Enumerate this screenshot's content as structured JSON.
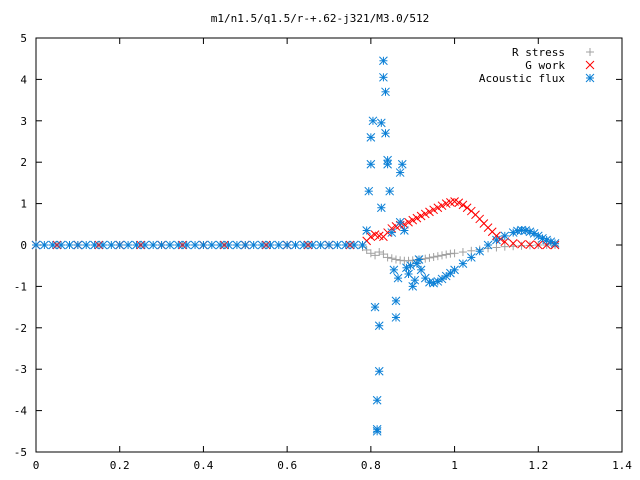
{
  "chart_data": {
    "type": "scatter",
    "title": "m1/n1.5/q1.5/r-+.62-j321/M3.0/512",
    "xlabel": "",
    "ylabel": "",
    "xlim": [
      0,
      1.4
    ],
    "ylim": [
      -5,
      5
    ],
    "x_ticks": [
      "0",
      "0.2",
      "0.4",
      "0.6",
      "0.8",
      "1",
      "1.2",
      "1.4"
    ],
    "y_ticks": [
      "5",
      "4",
      "3",
      "2",
      "1",
      "0",
      "-1",
      "-2",
      "-3",
      "-4",
      "-5"
    ],
    "grid": false,
    "legend_position": "top-right",
    "series": [
      {
        "name": "R stress",
        "marker": "+",
        "color": "#a0a0a0",
        "points": [
          [
            0.0,
            0
          ],
          [
            0.05,
            0
          ],
          [
            0.1,
            0
          ],
          [
            0.15,
            0
          ],
          [
            0.2,
            0
          ],
          [
            0.25,
            0
          ],
          [
            0.3,
            0
          ],
          [
            0.35,
            0
          ],
          [
            0.4,
            0
          ],
          [
            0.45,
            0
          ],
          [
            0.5,
            0
          ],
          [
            0.55,
            0
          ],
          [
            0.6,
            0
          ],
          [
            0.65,
            0
          ],
          [
            0.7,
            0
          ],
          [
            0.75,
            0
          ],
          [
            0.78,
            -0.05
          ],
          [
            0.79,
            -0.12
          ],
          [
            0.8,
            -0.2
          ],
          [
            0.81,
            -0.25
          ],
          [
            0.82,
            -0.17
          ],
          [
            0.83,
            -0.22
          ],
          [
            0.84,
            -0.3
          ],
          [
            0.85,
            -0.32
          ],
          [
            0.86,
            -0.35
          ],
          [
            0.87,
            -0.37
          ],
          [
            0.88,
            -0.38
          ],
          [
            0.89,
            -0.38
          ],
          [
            0.9,
            -0.37
          ],
          [
            0.91,
            -0.36
          ],
          [
            0.92,
            -0.35
          ],
          [
            0.93,
            -0.33
          ],
          [
            0.94,
            -0.31
          ],
          [
            0.95,
            -0.29
          ],
          [
            0.96,
            -0.27
          ],
          [
            0.97,
            -0.25
          ],
          [
            0.98,
            -0.23
          ],
          [
            0.99,
            -0.21
          ],
          [
            1.0,
            -0.2
          ],
          [
            1.02,
            -0.17
          ],
          [
            1.04,
            -0.14
          ],
          [
            1.06,
            -0.11
          ],
          [
            1.08,
            -0.08
          ],
          [
            1.1,
            -0.06
          ],
          [
            1.12,
            -0.04
          ],
          [
            1.14,
            -0.03
          ],
          [
            1.16,
            -0.02
          ],
          [
            1.18,
            -0.01
          ],
          [
            1.2,
            0
          ],
          [
            1.22,
            0
          ],
          [
            1.24,
            0
          ]
        ]
      },
      {
        "name": "G work",
        "marker": "x",
        "color": "#ff0000",
        "points": [
          [
            0.0,
            0
          ],
          [
            0.05,
            0
          ],
          [
            0.1,
            0
          ],
          [
            0.15,
            0
          ],
          [
            0.2,
            0
          ],
          [
            0.25,
            0
          ],
          [
            0.3,
            0
          ],
          [
            0.35,
            0
          ],
          [
            0.4,
            0
          ],
          [
            0.45,
            0
          ],
          [
            0.5,
            0
          ],
          [
            0.55,
            0
          ],
          [
            0.6,
            0
          ],
          [
            0.65,
            0
          ],
          [
            0.7,
            0
          ],
          [
            0.75,
            0
          ],
          [
            0.79,
            0.1
          ],
          [
            0.8,
            0.2
          ],
          [
            0.81,
            0.25
          ],
          [
            0.82,
            0.22
          ],
          [
            0.83,
            0.2
          ],
          [
            0.84,
            0.3
          ],
          [
            0.85,
            0.4
          ],
          [
            0.86,
            0.45
          ],
          [
            0.87,
            0.48
          ],
          [
            0.88,
            0.5
          ],
          [
            0.89,
            0.55
          ],
          [
            0.9,
            0.6
          ],
          [
            0.91,
            0.65
          ],
          [
            0.92,
            0.7
          ],
          [
            0.93,
            0.75
          ],
          [
            0.94,
            0.8
          ],
          [
            0.95,
            0.85
          ],
          [
            0.96,
            0.9
          ],
          [
            0.97,
            0.95
          ],
          [
            0.98,
            1.0
          ],
          [
            0.99,
            1.03
          ],
          [
            1.0,
            1.05
          ],
          [
            1.01,
            1.02
          ],
          [
            1.02,
            0.97
          ],
          [
            1.03,
            0.9
          ],
          [
            1.04,
            0.82
          ],
          [
            1.05,
            0.73
          ],
          [
            1.06,
            0.63
          ],
          [
            1.07,
            0.52
          ],
          [
            1.08,
            0.42
          ],
          [
            1.09,
            0.32
          ],
          [
            1.1,
            0.22
          ],
          [
            1.11,
            0.14
          ],
          [
            1.12,
            0.08
          ],
          [
            1.14,
            0.04
          ],
          [
            1.16,
            0.02
          ],
          [
            1.18,
            0.01
          ],
          [
            1.2,
            0
          ],
          [
            1.22,
            0
          ],
          [
            1.24,
            0
          ]
        ]
      },
      {
        "name": "Acoustic flux",
        "marker": "*",
        "color": "#0a7fd6",
        "points": [
          [
            0.0,
            0
          ],
          [
            0.02,
            0
          ],
          [
            0.04,
            0
          ],
          [
            0.06,
            0
          ],
          [
            0.08,
            0
          ],
          [
            0.1,
            0
          ],
          [
            0.12,
            0
          ],
          [
            0.14,
            0
          ],
          [
            0.16,
            0
          ],
          [
            0.18,
            0
          ],
          [
            0.2,
            0
          ],
          [
            0.22,
            0
          ],
          [
            0.24,
            0
          ],
          [
            0.26,
            0
          ],
          [
            0.28,
            0
          ],
          [
            0.3,
            0
          ],
          [
            0.32,
            0
          ],
          [
            0.34,
            0
          ],
          [
            0.36,
            0
          ],
          [
            0.38,
            0
          ],
          [
            0.4,
            0
          ],
          [
            0.42,
            0
          ],
          [
            0.44,
            0
          ],
          [
            0.46,
            0
          ],
          [
            0.48,
            0
          ],
          [
            0.5,
            0
          ],
          [
            0.52,
            0
          ],
          [
            0.54,
            0
          ],
          [
            0.56,
            0
          ],
          [
            0.58,
            0
          ],
          [
            0.6,
            0
          ],
          [
            0.62,
            0
          ],
          [
            0.64,
            0
          ],
          [
            0.66,
            0
          ],
          [
            0.68,
            0
          ],
          [
            0.7,
            0
          ],
          [
            0.72,
            0
          ],
          [
            0.74,
            0
          ],
          [
            0.76,
            0
          ],
          [
            0.78,
            0
          ],
          [
            0.79,
            0.35
          ],
          [
            0.795,
            1.3
          ],
          [
            0.8,
            1.95
          ],
          [
            0.8,
            2.6
          ],
          [
            0.805,
            3.0
          ],
          [
            0.81,
            -1.5
          ],
          [
            0.815,
            -4.5
          ],
          [
            0.815,
            -4.45
          ],
          [
            0.815,
            -3.75
          ],
          [
            0.82,
            -3.05
          ],
          [
            0.82,
            -1.95
          ],
          [
            0.825,
            0.9
          ],
          [
            0.825,
            2.95
          ],
          [
            0.83,
            4.45
          ],
          [
            0.83,
            4.05
          ],
          [
            0.835,
            3.7
          ],
          [
            0.835,
            2.7
          ],
          [
            0.84,
            2.05
          ],
          [
            0.84,
            1.95
          ],
          [
            0.845,
            1.3
          ],
          [
            0.85,
            0.3
          ],
          [
            0.855,
            -0.6
          ],
          [
            0.86,
            -1.75
          ],
          [
            0.86,
            -1.35
          ],
          [
            0.865,
            -0.8
          ],
          [
            0.87,
            0.55
          ],
          [
            0.87,
            1.75
          ],
          [
            0.875,
            1.95
          ],
          [
            0.88,
            0.35
          ],
          [
            0.885,
            -0.55
          ],
          [
            0.89,
            -0.7
          ],
          [
            0.895,
            -0.5
          ],
          [
            0.9,
            -1.0
          ],
          [
            0.905,
            -0.85
          ],
          [
            0.91,
            -0.45
          ],
          [
            0.915,
            -0.35
          ],
          [
            0.92,
            -0.6
          ],
          [
            0.93,
            -0.8
          ],
          [
            0.94,
            -0.9
          ],
          [
            0.95,
            -0.92
          ],
          [
            0.96,
            -0.88
          ],
          [
            0.97,
            -0.82
          ],
          [
            0.98,
            -0.75
          ],
          [
            0.99,
            -0.68
          ],
          [
            1.0,
            -0.6
          ],
          [
            1.02,
            -0.45
          ],
          [
            1.04,
            -0.3
          ],
          [
            1.06,
            -0.15
          ],
          [
            1.08,
            0
          ],
          [
            1.1,
            0.12
          ],
          [
            1.12,
            0.22
          ],
          [
            1.14,
            0.3
          ],
          [
            1.15,
            0.34
          ],
          [
            1.16,
            0.36
          ],
          [
            1.17,
            0.35
          ],
          [
            1.18,
            0.32
          ],
          [
            1.19,
            0.28
          ],
          [
            1.2,
            0.22
          ],
          [
            1.21,
            0.16
          ],
          [
            1.22,
            0.12
          ],
          [
            1.23,
            0.08
          ],
          [
            1.24,
            0.04
          ]
        ]
      }
    ]
  }
}
